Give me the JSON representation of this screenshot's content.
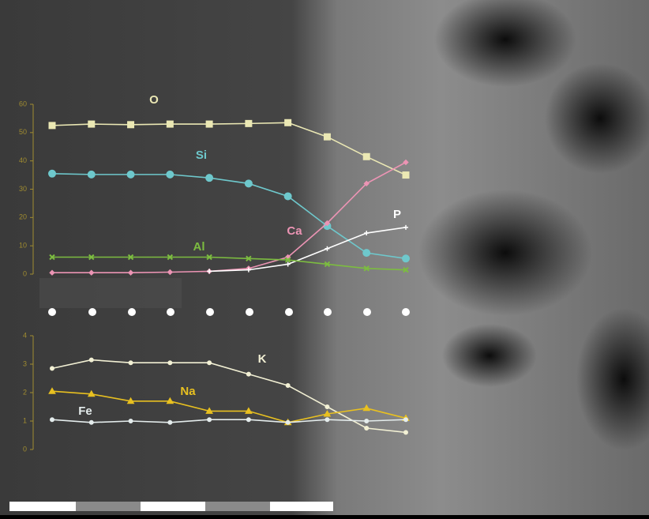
{
  "chart_data": [
    {
      "type": "line",
      "categories": [
        null,
        null,
        null,
        null,
        null,
        null,
        null,
        null,
        null,
        null
      ],
      "ylim": [
        0,
        60
      ],
      "yticks": [
        0,
        10,
        20,
        30,
        40,
        50,
        60
      ],
      "series": [
        {
          "name": "O",
          "color": "#ebe8b4",
          "values": [
            52.5,
            53,
            52.8,
            53,
            53,
            53.2,
            53.5,
            48.5,
            41.5,
            35
          ]
        },
        {
          "name": "Si",
          "color": "#6ec8cc",
          "values": [
            35.5,
            35.2,
            35.2,
            35.2,
            34,
            32,
            27.5,
            17,
            7.5,
            5.5
          ]
        },
        {
          "name": "Ca",
          "color": "#ec94b4",
          "values": [
            0.5,
            0.5,
            0.5,
            0.7,
            1,
            2,
            6,
            18,
            32,
            39.5
          ]
        },
        {
          "name": "P",
          "color": "#ffffff",
          "values": [
            null,
            null,
            null,
            null,
            1,
            1.5,
            3.5,
            9,
            14.5,
            16.5
          ]
        },
        {
          "name": "Al",
          "color": "#7cbc40",
          "values": [
            6,
            6,
            6,
            6,
            6,
            5.5,
            5,
            3.5,
            2,
            1.5
          ]
        }
      ]
    },
    {
      "type": "line",
      "categories": [
        null,
        null,
        null,
        null,
        null,
        null,
        null,
        null,
        null,
        null
      ],
      "ylim": [
        0,
        4
      ],
      "yticks": [
        0,
        1,
        2,
        3,
        4
      ],
      "series": [
        {
          "name": "K",
          "color": "#f2f0d4",
          "values": [
            2.85,
            3.15,
            3.05,
            3.05,
            3.05,
            2.65,
            2.25,
            1.5,
            0.75,
            0.6
          ]
        },
        {
          "name": "Na",
          "color": "#e8c020",
          "values": [
            2.05,
            1.95,
            1.7,
            1.7,
            1.35,
            1.35,
            0.95,
            1.25,
            1.45,
            1.1
          ]
        },
        {
          "name": "Fe",
          "color": "#e4ecec",
          "values": [
            1.05,
            0.95,
            1.0,
            0.95,
            1.05,
            1.05,
            0.95,
            1.05,
            1.0,
            1.05
          ]
        }
      ]
    }
  ]
}
